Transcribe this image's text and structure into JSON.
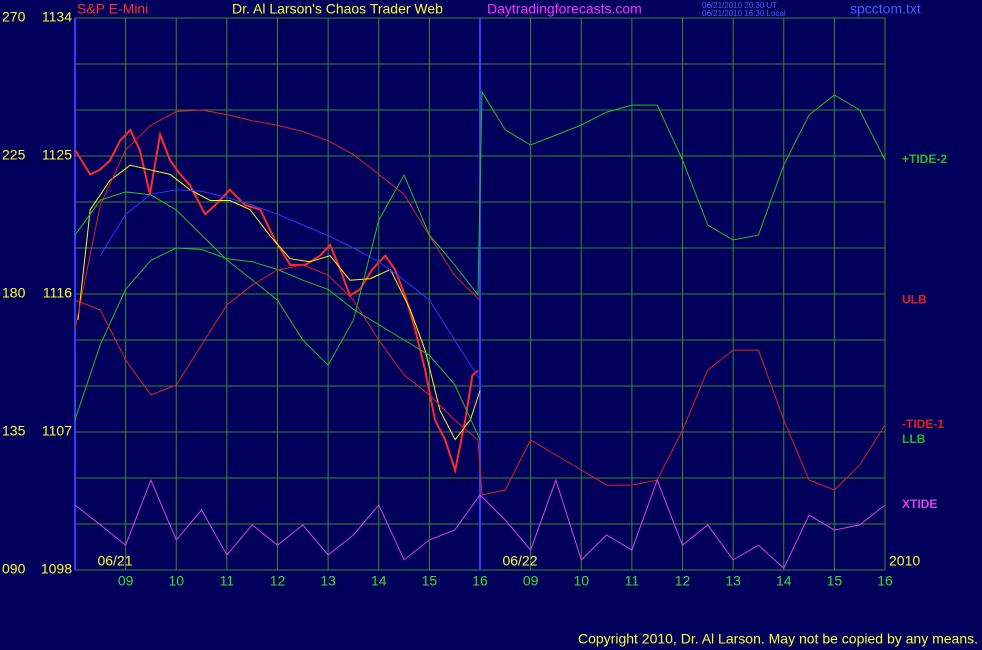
{
  "header": {
    "symbol": "S&P E-Mini",
    "title": "Dr. Al Larson's Chaos Trader Web",
    "site": "Daytradingforecasts.com",
    "time_ut": "06/21/2010 20:30 UT",
    "time_local": "06/21/2010 16:30 Local",
    "file": "spcctom.txt"
  },
  "footer": {
    "copyright": "Copyright 2010, Dr. Al Larson. May not be copied by any means."
  },
  "chart_data": {
    "type": "line",
    "xlim": [
      0,
      16
    ],
    "xticks": [
      {
        "value": 1,
        "label": "09"
      },
      {
        "value": 2,
        "label": "10"
      },
      {
        "value": 3,
        "label": "11"
      },
      {
        "value": 4,
        "label": "12"
      },
      {
        "value": 5,
        "label": "13"
      },
      {
        "value": 6,
        "label": "14"
      },
      {
        "value": 7,
        "label": "15"
      },
      {
        "value": 8,
        "label": "16"
      },
      {
        "value": 9,
        "label": "09"
      },
      {
        "value": 10,
        "label": "10"
      },
      {
        "value": 11,
        "label": "11"
      },
      {
        "value": 12,
        "label": "12"
      },
      {
        "value": 13,
        "label": "13"
      },
      {
        "value": 14,
        "label": "14"
      },
      {
        "value": 15,
        "label": "15"
      },
      {
        "value": 16,
        "label": "16"
      }
    ],
    "dates": [
      {
        "value": 0,
        "label": "06/21"
      },
      {
        "value": 8,
        "label": "06/22"
      }
    ],
    "year": "2010",
    "ylim": [
      1098,
      1134
    ],
    "yticks": [
      1098,
      1107,
      1116,
      1125,
      1134
    ],
    "ygrid": [
      1098,
      1101,
      1104,
      1107,
      1110,
      1113,
      1116,
      1119,
      1122,
      1125,
      1128,
      1131,
      1134
    ],
    "y2lim": [
      90,
      270
    ],
    "y2ticks": [
      {
        "value": 90,
        "label": "090"
      },
      135,
      180,
      225,
      270
    ],
    "grid": true,
    "background": "#00005c",
    "grid_color": "#2e8e2e",
    "axis_color": "#3040ff",
    "series": [
      {
        "color": "#ff2a2a",
        "x": [
          0,
          0.3,
          0.49,
          0.69,
          0.89,
          1.09,
          1.28,
          1.48,
          1.68,
          1.88,
          2.08,
          2.27,
          2.57,
          2.77,
          3.06,
          3.36,
          3.66,
          3.95,
          4.25,
          4.55,
          4.84,
          5.04,
          5.24,
          5.43,
          5.63,
          5.87,
          6.13,
          6.32,
          6.52,
          6.72,
          6.92,
          7.11,
          7.31,
          7.51,
          7.71,
          7.85,
          7.96
        ],
        "values": [
          1125.4,
          1123.8,
          1124.1,
          1124.7,
          1126.0,
          1126.7,
          1125.4,
          1122.5,
          1126.4,
          1124.7,
          1123.8,
          1123.1,
          1121.2,
          1121.8,
          1122.8,
          1121.8,
          1121.5,
          1119.5,
          1117.9,
          1117.9,
          1118.5,
          1119.2,
          1117.6,
          1115.9,
          1116.3,
          1117.6,
          1118.5,
          1117.6,
          1115.9,
          1113.7,
          1111.0,
          1107.8,
          1106.5,
          1104.5,
          1107.8,
          1110.7,
          1111.0
        ]
      },
      {
        "color": "#ffff00",
        "x": [
          0.06,
          0.3,
          0.69,
          1.09,
          1.48,
          1.88,
          2.27,
          2.67,
          3.06,
          3.46,
          3.85,
          4.25,
          4.64,
          5.04,
          5.43,
          5.83,
          6.23,
          6.62,
          6.92,
          7.21,
          7.51,
          7.81,
          8.0
        ],
        "values": [
          1114.3,
          1121.5,
          1123.4,
          1124.4,
          1124.1,
          1123.8,
          1122.8,
          1122.1,
          1122.1,
          1121.5,
          1119.8,
          1118.3,
          1118.1,
          1118.5,
          1116.9,
          1117.0,
          1117.6,
          1115.0,
          1112.3,
          1108.4,
          1106.5,
          1107.8,
          1109.7
        ]
      },
      {
        "color": "#3434ff",
        "x": [
          0.5,
          1,
          1.5,
          2,
          2.5,
          3,
          3.5,
          4,
          4.5,
          5,
          5.5,
          6,
          6.5,
          7,
          7.5,
          8
        ],
        "values": [
          1118.5,
          1121.2,
          1122.5,
          1122.8,
          1122.7,
          1122.3,
          1121.8,
          1121.2,
          1120.5,
          1119.8,
          1119.0,
          1118.1,
          1116.9,
          1115.6,
          1113.0,
          1110.4
        ]
      },
      {
        "name": "ULB",
        "color": "#e02020",
        "x": [
          0,
          0.5,
          1,
          1.5,
          2,
          2.5,
          3,
          3.5,
          4,
          4.5,
          5,
          5.5,
          6,
          6.5,
          7,
          7.5,
          8
        ],
        "values": [
          1113.7,
          1121.8,
          1125.4,
          1127.0,
          1127.9,
          1128.0,
          1127.7,
          1127.3,
          1127.0,
          1126.6,
          1126.0,
          1125.1,
          1123.8,
          1122.5,
          1119.8,
          1117.2,
          1115.6
        ]
      },
      {
        "name": "LLB",
        "color": "#20c020",
        "x": [
          0,
          0.5,
          1,
          1.5,
          2,
          2.5,
          3,
          3.5,
          4,
          4.5,
          5,
          5.5,
          6,
          6.5,
          7,
          7.5,
          8
        ],
        "values": [
          1107.8,
          1112.7,
          1116.3,
          1118.2,
          1119.0,
          1118.9,
          1118.3,
          1118.1,
          1117.6,
          1116.9,
          1116.3,
          1115.0,
          1114.0,
          1113.0,
          1112.0,
          1110.1,
          1106.5
        ]
      },
      {
        "name": "+TIDE-2",
        "color": "#20c020",
        "axis": "y2",
        "x": [
          0,
          0.5,
          1,
          1.5,
          2,
          2.5,
          3,
          3.5,
          4,
          4.5,
          5,
          5.5,
          6,
          6.5,
          7,
          7.5,
          7.96,
          8.04,
          8.5,
          9,
          9.5,
          10,
          10.5,
          11,
          11.5,
          12,
          12.5,
          13,
          13.5,
          14,
          14.5,
          15,
          15.5,
          16
        ],
        "values": [
          199.2,
          210.6,
          213.3,
          212.3,
          207.4,
          199.2,
          191.1,
          184.6,
          178.0,
          165.0,
          156.8,
          171.5,
          204.1,
          218.8,
          199.2,
          189.5,
          179.7,
          245.9,
          233.5,
          228.6,
          231.8,
          235.1,
          239.3,
          241.6,
          241.6,
          223.7,
          202.5,
          197.6,
          199.2,
          222.1,
          238.4,
          244.9,
          240.0,
          223.7
        ]
      },
      {
        "name": "-TIDE-1",
        "color": "#e02020",
        "axis": "y2",
        "x": [
          0,
          0.5,
          1,
          1.5,
          2,
          2.5,
          3,
          3.5,
          4,
          4.5,
          5,
          5.5,
          6,
          6.5,
          7,
          7.5,
          7.96,
          8.04,
          8.5,
          9,
          9.5,
          10,
          10.5,
          11,
          11.5,
          12,
          12.5,
          13,
          13.5,
          14,
          14.5,
          15,
          15.5,
          16
        ],
        "values": [
          178.0,
          174.8,
          158.5,
          147.1,
          150.3,
          163.4,
          176.4,
          182.9,
          187.8,
          189.5,
          186.2,
          178.0,
          165.0,
          153.6,
          147.1,
          138.9,
          132.4,
          114.5,
          116.1,
          132.4,
          127.5,
          122.6,
          117.7,
          117.7,
          119.3,
          135.6,
          155.2,
          161.7,
          161.7,
          138.9,
          119.3,
          116.1,
          124.2,
          137.3
        ]
      },
      {
        "name": "XTIDE",
        "color": "#e040e0",
        "axis": "y2",
        "x": [
          0,
          0.5,
          1,
          1.5,
          2,
          2.5,
          3,
          3.5,
          4,
          4.5,
          5,
          5.5,
          6,
          6.5,
          7,
          7.5,
          8,
          8.5,
          9,
          9.5,
          10,
          10.5,
          11,
          11.5,
          12,
          12.5,
          13,
          13.5,
          14,
          14.5,
          15,
          15.5,
          16
        ],
        "values": [
          111.2,
          104.7,
          98.1,
          119.3,
          99.8,
          109.6,
          94.9,
          104.7,
          98.1,
          104.7,
          94.9,
          101.4,
          111.2,
          93.3,
          99.8,
          103.0,
          114.5,
          106.3,
          96.5,
          119.3,
          93.3,
          101.4,
          96.5,
          119.3,
          98.1,
          104.7,
          93.3,
          98.1,
          90.6,
          107.9,
          103.0,
          104.7,
          111.2
        ]
      }
    ]
  }
}
